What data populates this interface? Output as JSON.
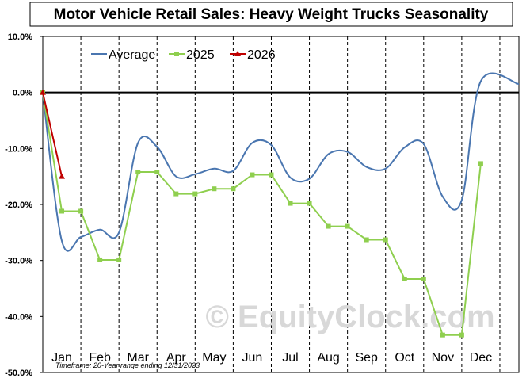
{
  "chart_data": {
    "type": "line",
    "title": "Motor Vehicle Retail Sales: Heavy Weight Trucks Seasonality",
    "xlabel": "",
    "ylabel": "",
    "ylim": [
      -50,
      10
    ],
    "yticks": [
      10,
      0,
      -10,
      -20,
      -30,
      -40,
      -50
    ],
    "ytick_labels": [
      "10.0%",
      "0.0%",
      "-10.0%",
      "-20.0%",
      "-30.0%",
      "-40.0%",
      "-50.0%"
    ],
    "month_labels": [
      "Jan",
      "Feb",
      "Mar",
      "Apr",
      "May",
      "Jun",
      "Jul",
      "Aug",
      "Sep",
      "Oct",
      "Nov",
      "Dec"
    ],
    "x_domain": [
      0,
      12.5
    ],
    "grid": "vertical dashed at month boundaries",
    "legend_position": "top-left",
    "footnote": "Timeframe: 20-Year range ending 12/31/2023",
    "watermark": "© EquityClock.com",
    "series": [
      {
        "name": "Average",
        "color": "#4a76b0",
        "smooth": true,
        "marker": "none",
        "points": [
          [
            0,
            0
          ],
          [
            0.5,
            -26.5
          ],
          [
            1.0,
            -25.8
          ],
          [
            1.5,
            -24.5
          ],
          [
            2.0,
            -25.0
          ],
          [
            2.5,
            -9.0
          ],
          [
            3.0,
            -9.7
          ],
          [
            3.5,
            -15.0
          ],
          [
            4.0,
            -14.6
          ],
          [
            4.5,
            -13.6
          ],
          [
            5.0,
            -14.0
          ],
          [
            5.5,
            -9.0
          ],
          [
            6.0,
            -9.4
          ],
          [
            6.5,
            -15.2
          ],
          [
            7.0,
            -15.4
          ],
          [
            7.5,
            -11.0
          ],
          [
            8.0,
            -10.6
          ],
          [
            8.5,
            -13.3
          ],
          [
            9.0,
            -13.6
          ],
          [
            9.5,
            -9.8
          ],
          [
            10.0,
            -9.2
          ],
          [
            10.5,
            -18.6
          ],
          [
            11.0,
            -19.2
          ],
          [
            11.5,
            2.0
          ],
          [
            12.5,
            1.5
          ]
        ]
      },
      {
        "name": "2025",
        "color": "#8fcf4f",
        "smooth": false,
        "marker": "square",
        "points": [
          [
            0,
            0
          ],
          [
            0.5,
            -21.2
          ],
          [
            1.0,
            -21.2
          ],
          [
            1.5,
            -29.9
          ],
          [
            2.0,
            -29.9
          ],
          [
            2.5,
            -14.2
          ],
          [
            3.0,
            -14.2
          ],
          [
            3.5,
            -18.1
          ],
          [
            4.0,
            -18.1
          ],
          [
            4.5,
            -17.2
          ],
          [
            5.0,
            -17.2
          ],
          [
            5.5,
            -14.7
          ],
          [
            6.0,
            -14.7
          ],
          [
            6.5,
            -19.8
          ],
          [
            7.0,
            -19.8
          ],
          [
            7.5,
            -23.9
          ],
          [
            8.0,
            -23.9
          ],
          [
            8.5,
            -26.3
          ],
          [
            9.0,
            -26.3
          ],
          [
            9.5,
            -33.3
          ],
          [
            10.0,
            -33.3
          ],
          [
            10.5,
            -43.3
          ],
          [
            11.0,
            -43.3
          ],
          [
            11.5,
            -12.7
          ]
        ]
      },
      {
        "name": "2026",
        "color": "#c00000",
        "smooth": false,
        "marker": "triangle",
        "points": [
          [
            0,
            0
          ],
          [
            0.5,
            -15.0
          ]
        ]
      }
    ]
  }
}
